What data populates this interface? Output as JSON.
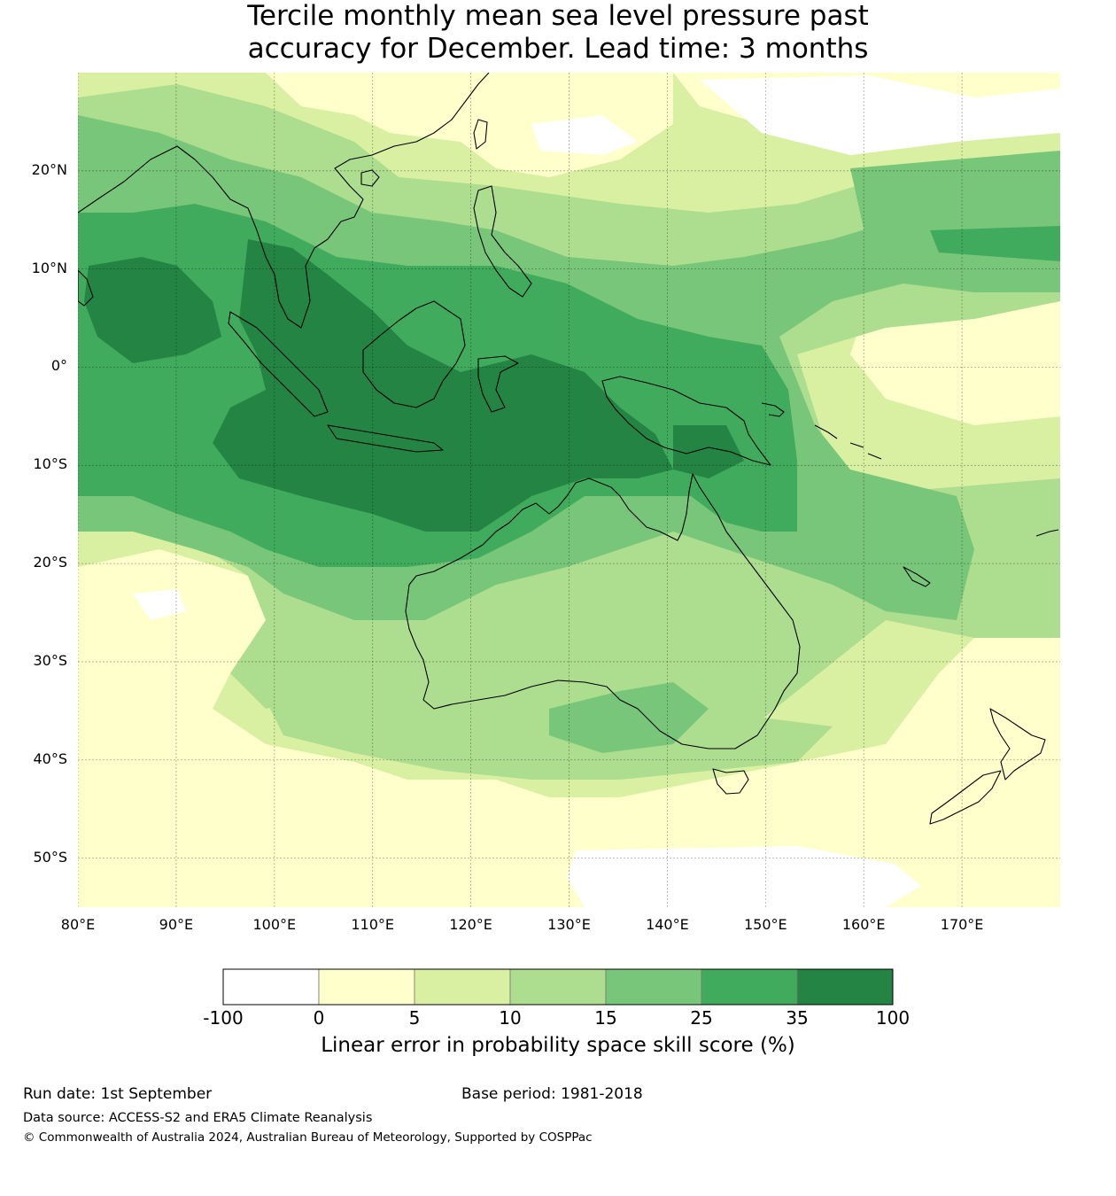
{
  "title_line1": "Tercile monthly mean sea level pressure past",
  "title_line2": "accuracy for December. Lead time: 3 months",
  "map": {
    "type": "choropleth-raster",
    "lon_range": [
      80,
      180
    ],
    "lat_range": [
      -55,
      30
    ],
    "grid": true,
    "lat_ticks": [
      {
        "value": 20,
        "label": "20°N"
      },
      {
        "value": 10,
        "label": "10°N"
      },
      {
        "value": 0,
        "label": "0°"
      },
      {
        "value": -10,
        "label": "10°S"
      },
      {
        "value": -20,
        "label": "20°S"
      },
      {
        "value": -30,
        "label": "30°S"
      },
      {
        "value": -40,
        "label": "40°S"
      },
      {
        "value": -50,
        "label": "50°S"
      }
    ],
    "lon_ticks": [
      {
        "value": 80,
        "label": "80°E"
      },
      {
        "value": 90,
        "label": "90°E"
      },
      {
        "value": 100,
        "label": "100°E"
      },
      {
        "value": 110,
        "label": "110°E"
      },
      {
        "value": 120,
        "label": "120°E"
      },
      {
        "value": 130,
        "label": "130°E"
      },
      {
        "value": 140,
        "label": "140°E"
      },
      {
        "value": 150,
        "label": "150°E"
      },
      {
        "value": 160,
        "label": "160°E"
      },
      {
        "value": 170,
        "label": "170°E"
      }
    ]
  },
  "colorbar": {
    "bins": [
      {
        "from": -100,
        "to": 0,
        "color": "#ffffff"
      },
      {
        "from": 0,
        "to": 5,
        "color": "#ffffcc"
      },
      {
        "from": 5,
        "to": 10,
        "color": "#d9f0a3"
      },
      {
        "from": 10,
        "to": 15,
        "color": "#addd8e"
      },
      {
        "from": 15,
        "to": 25,
        "color": "#78c679"
      },
      {
        "from": 25,
        "to": 35,
        "color": "#41ab5d"
      },
      {
        "from": 35,
        "to": 100,
        "color": "#238443"
      }
    ],
    "tick_labels": [
      "-100",
      "0",
      "5",
      "10",
      "15",
      "25",
      "35",
      "100"
    ],
    "label": "Linear error in probability space skill score (%)"
  },
  "footer": {
    "run_date": "Run date: 1st September",
    "base_period": "Base period: 1981-2018",
    "data_source": "Data source: ACCESS-S2 and ERA5 Climate Reanalysis",
    "copyright": "© Commonwealth of Australia 2024, Australian Bureau of Meteorology, Supported by COSPPac"
  }
}
